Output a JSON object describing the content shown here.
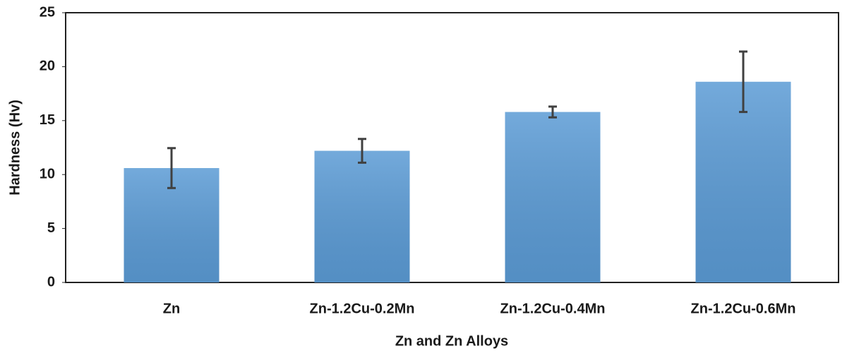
{
  "chart_data": {
    "type": "bar",
    "x_label": "Zn and Zn Alloys",
    "y_label": "Hardness (Hv)",
    "categories": [
      "Zn",
      "Zn-1.2Cu-0.2Mn",
      "Zn-1.2Cu-0.4Mn",
      "Zn-1.2Cu-0.6Mn"
    ],
    "values": [
      10.6,
      12.2,
      15.8,
      18.6
    ],
    "errors": [
      1.85,
      1.1,
      0.5,
      2.8
    ],
    "color": "#5b9bd5",
    "error_color": "#404040",
    "ylim": [
      0,
      25
    ],
    "yticks": [
      0,
      5,
      10,
      15,
      20,
      25
    ],
    "grid": false
  }
}
